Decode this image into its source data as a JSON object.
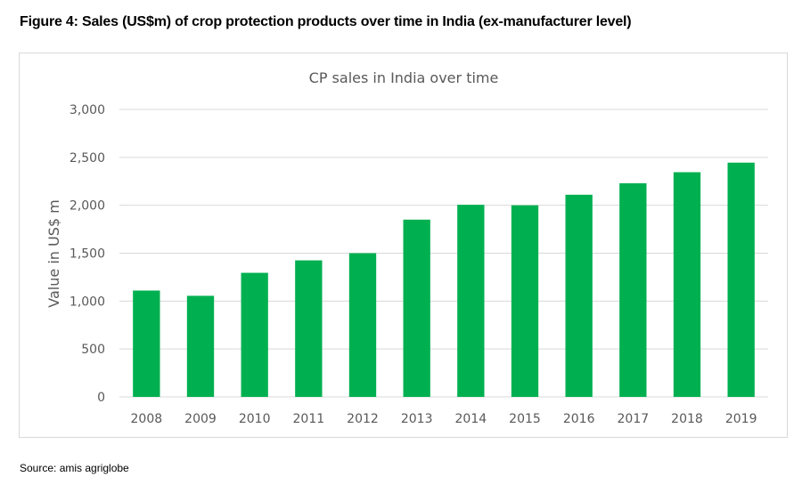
{
  "figure_caption": "Figure 4: Sales (US$m) of crop protection products over time in India (ex-manufacturer level)",
  "source": "Source: amis agriglobe",
  "colors": {
    "bar": "#00b050",
    "grid": "#d9d9d9",
    "text": "#595959"
  },
  "chart_data": {
    "type": "bar",
    "title": "CP sales in India over time",
    "xlabel": "",
    "ylabel": "Value in US$ m",
    "categories": [
      "2008",
      "2009",
      "2010",
      "2011",
      "2012",
      "2013",
      "2014",
      "2015",
      "2016",
      "2017",
      "2018",
      "2019"
    ],
    "values": [
      1110,
      1055,
      1295,
      1425,
      1500,
      1850,
      2005,
      2000,
      2110,
      2230,
      2345,
      2445
    ],
    "ylim": [
      0,
      3000
    ],
    "yticks": [
      "0",
      "500",
      "1,000",
      "1,500",
      "2,000",
      "2,500",
      "3,000"
    ],
    "grid": true,
    "legend": "none"
  }
}
